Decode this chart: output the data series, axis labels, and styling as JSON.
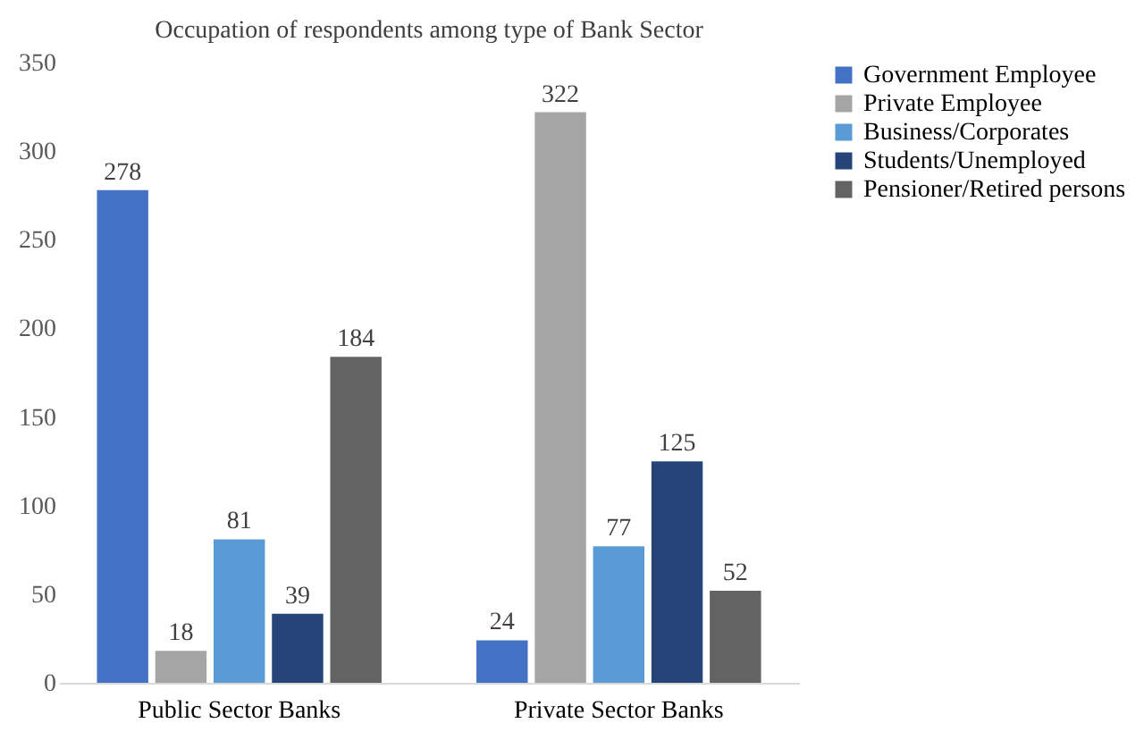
{
  "chart_data": {
    "type": "bar",
    "title": "Occupation of respondents among type of Bank Sector",
    "categories": [
      "Public Sector Banks",
      "Private Sector Banks"
    ],
    "series": [
      {
        "name": "Government Employee",
        "color": "#4472c4",
        "values": [
          278,
          24
        ]
      },
      {
        "name": "Private Employee",
        "color": "#a5a5a5",
        "values": [
          18,
          322
        ]
      },
      {
        "name": "Business/Corporates",
        "color": "#5b9bd5",
        "values": [
          81,
          77
        ]
      },
      {
        "name": "Students/Unemployed",
        "color": "#264478",
        "values": [
          39,
          125
        ]
      },
      {
        "name": "Pensioner/Retired persons",
        "color": "#636363",
        "values": [
          184,
          52
        ]
      }
    ],
    "ylim": [
      0,
      350
    ],
    "yticks": [
      0,
      50,
      100,
      150,
      200,
      250,
      300,
      350
    ],
    "data_labels": true,
    "grid": false,
    "legend": "right"
  }
}
